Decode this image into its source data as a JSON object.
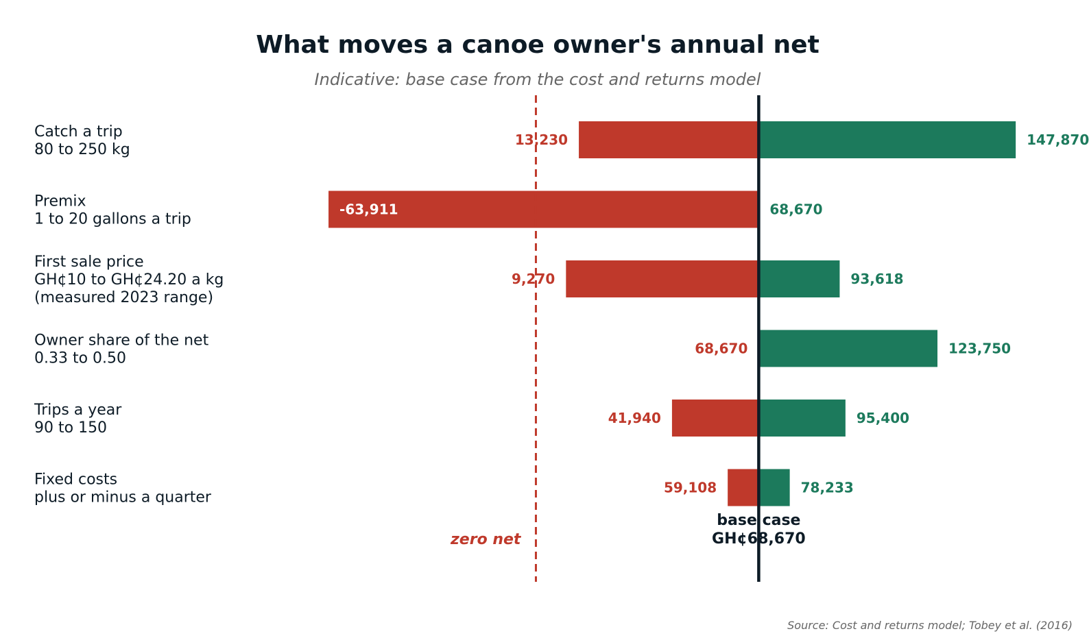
{
  "chart_data": {
    "type": "bar",
    "title": "What moves a canoe owner's annual net",
    "subtitle": "Indicative: base case from the cost and returns model",
    "source": "Source: Cost and returns model; Tobey et al. (2016)",
    "base_value": 68670,
    "xlim": [
      -84000,
      162000
    ],
    "grid": false,
    "colors": {
      "low": "#bf392b",
      "high": "#1c7a5c",
      "base_line": "#0d1b26",
      "zero_line": "#bf392b",
      "text": "#0d1b26",
      "muted": "#666666"
    },
    "zero_line_label": "zero net",
    "base_line_label": [
      "base case",
      "GH¢68,670"
    ],
    "categories": [
      {
        "label": [
          "Catch a trip",
          "80 to 250 kg"
        ],
        "low": 13230,
        "high": 147870,
        "low_text": "13,230",
        "high_text": "147,870"
      },
      {
        "label": [
          "Premix",
          "1 to 20 gallons a trip"
        ],
        "low": -63911,
        "high": 68670,
        "low_text": "-63,911",
        "high_text": "68,670"
      },
      {
        "label": [
          "First sale price",
          "GH¢10 to GH¢24.20 a kg",
          "(measured 2023 range)"
        ],
        "low": 9270,
        "high": 93618,
        "low_text": "9,270",
        "high_text": "93,618"
      },
      {
        "label": [
          "Owner share of the net",
          "0.33 to 0.50"
        ],
        "low": 68670,
        "high": 123750,
        "low_text": "68,670",
        "high_text": "123,750"
      },
      {
        "label": [
          "Trips a year",
          "90 to 150"
        ],
        "low": 41940,
        "high": 95400,
        "low_text": "41,940",
        "high_text": "95,400"
      },
      {
        "label": [
          "Fixed costs",
          "plus or minus a quarter"
        ],
        "low": 59108,
        "high": 78233,
        "low_text": "59,108",
        "high_text": "78,233"
      }
    ]
  }
}
